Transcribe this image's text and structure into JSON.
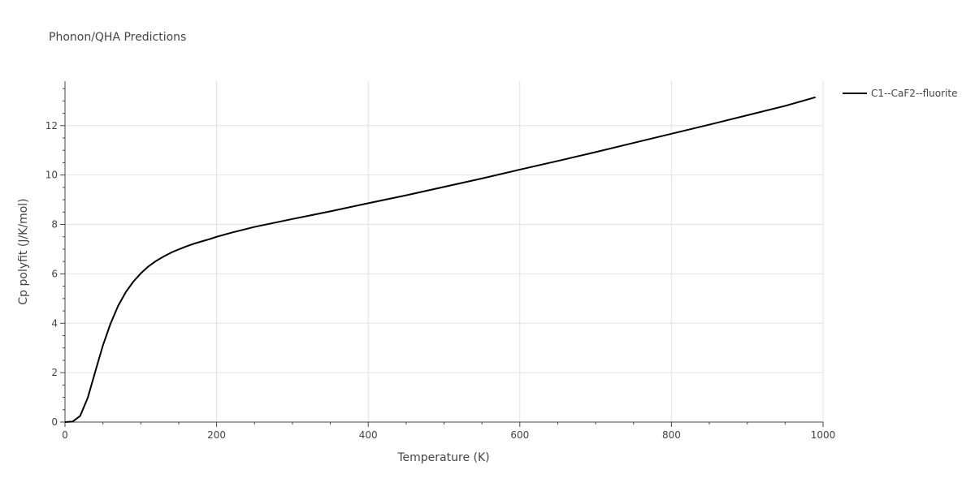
{
  "chart_data": {
    "type": "line",
    "title": "Phonon/QHA Predictions",
    "xlabel": "Temperature (K)",
    "ylabel": "Cp polyfit (J/K/mol)",
    "xlim": [
      0,
      1000
    ],
    "ylim": [
      0,
      13.8
    ],
    "xticks": [
      0,
      200,
      400,
      600,
      800,
      1000
    ],
    "xtick_labels": [
      "0",
      "200",
      "400",
      "600",
      "800",
      "1000"
    ],
    "yticks": [
      0,
      2,
      4,
      6,
      8,
      10,
      12
    ],
    "ytick_labels": [
      "0",
      "2",
      "4",
      "6",
      "8",
      "10",
      "12"
    ],
    "grid": true,
    "legend_position": "top-right",
    "series": [
      {
        "name": "C1--CaF2--fluorite",
        "color": "#000000",
        "x": [
          0,
          10,
          20,
          30,
          40,
          50,
          60,
          70,
          80,
          90,
          100,
          110,
          120,
          130,
          140,
          150,
          160,
          170,
          180,
          190,
          200,
          220,
          250,
          300,
          350,
          400,
          450,
          500,
          550,
          600,
          650,
          700,
          750,
          800,
          850,
          900,
          950,
          990
        ],
        "y": [
          0,
          0.02,
          0.25,
          0.98,
          2.05,
          3.1,
          3.98,
          4.7,
          5.25,
          5.68,
          6.02,
          6.3,
          6.52,
          6.7,
          6.86,
          6.99,
          7.11,
          7.22,
          7.31,
          7.4,
          7.5,
          7.67,
          7.9,
          8.22,
          8.53,
          8.86,
          9.18,
          9.52,
          9.86,
          10.22,
          10.57,
          10.93,
          11.3,
          11.67,
          12.04,
          12.42,
          12.8,
          13.15
        ]
      }
    ]
  }
}
